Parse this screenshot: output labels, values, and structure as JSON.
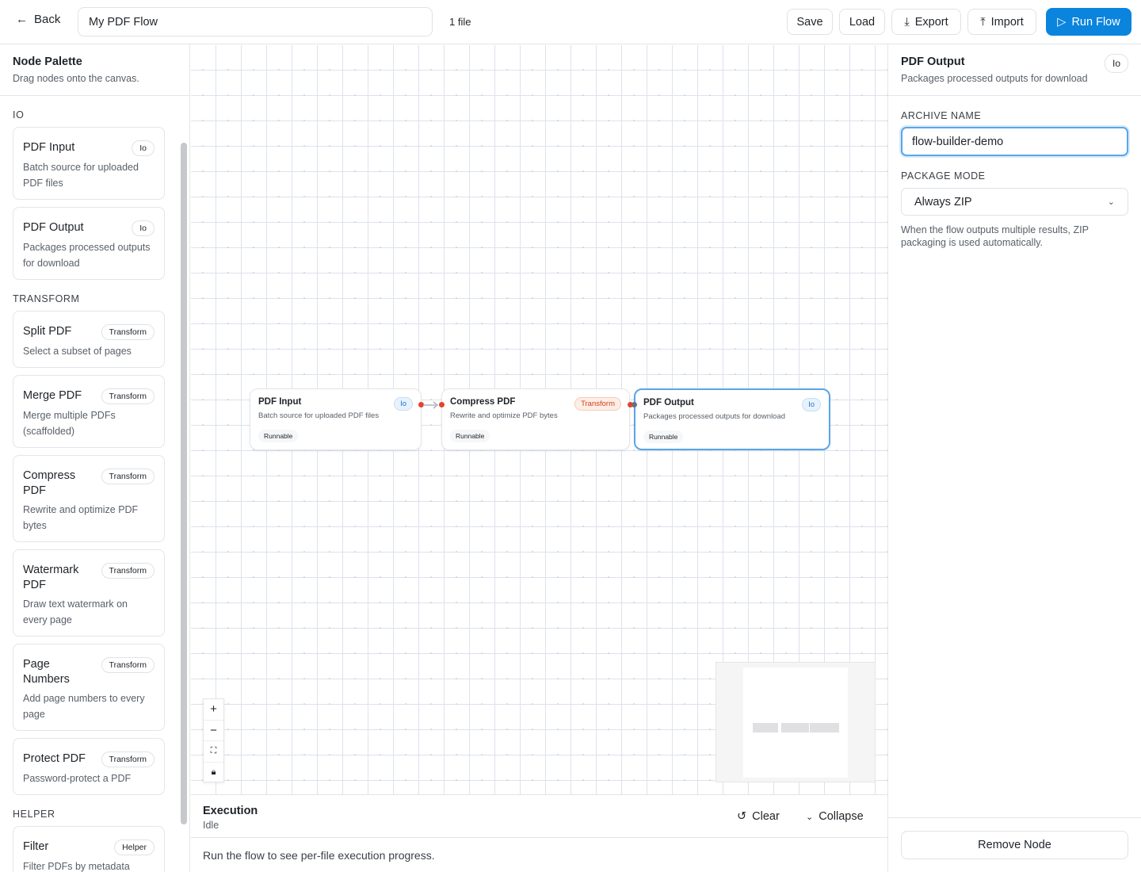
{
  "header": {
    "back": "Back",
    "flow_name": "My PDF Flow",
    "file_count": "1 file",
    "save": "Save",
    "load": "Load",
    "export": "Export",
    "import": "Import",
    "run": "Run Flow"
  },
  "palette": {
    "title": "Node Palette",
    "subtitle": "Drag nodes onto the canvas.",
    "sections": [
      {
        "label": "IO",
        "items": [
          {
            "title": "PDF Input",
            "badge": "Io",
            "desc": "Batch source for uploaded PDF files"
          },
          {
            "title": "PDF Output",
            "badge": "Io",
            "desc": "Packages processed outputs for download"
          }
        ]
      },
      {
        "label": "TRANSFORM",
        "items": [
          {
            "title": "Split PDF",
            "badge": "Transform",
            "desc": "Select a subset of pages"
          },
          {
            "title": "Merge PDF",
            "badge": "Transform",
            "desc": "Merge multiple PDFs (scaffolded)"
          },
          {
            "title": "Compress PDF",
            "badge": "Transform",
            "desc": "Rewrite and optimize PDF bytes"
          },
          {
            "title": "Watermark PDF",
            "badge": "Transform",
            "desc": "Draw text watermark on every page"
          },
          {
            "title": "Page Numbers",
            "badge": "Transform",
            "desc": "Add page numbers to every page"
          },
          {
            "title": "Protect PDF",
            "badge": "Transform",
            "desc": "Password-protect a PDF"
          }
        ]
      },
      {
        "label": "HELPER",
        "items": [
          {
            "title": "Filter",
            "badge": "Helper",
            "desc": "Filter PDFs by metadata (page count)"
          }
        ]
      }
    ]
  },
  "canvas": {
    "nodes": [
      {
        "title": "PDF Input",
        "badge": "Io",
        "desc": "Batch source for uploaded PDF files",
        "status": "Runnable"
      },
      {
        "title": "Compress PDF",
        "badge": "Transform",
        "desc": "Rewrite and optimize PDF bytes",
        "status": "Runnable"
      },
      {
        "title": "PDF Output",
        "badge": "Io",
        "desc": "Packages processed outputs for download",
        "status": "Runnable",
        "selected": true
      }
    ]
  },
  "execution": {
    "title": "Execution",
    "status": "Idle",
    "clear": "Clear",
    "collapse": "Collapse",
    "message": "Run the flow to see per-file execution progress."
  },
  "inspector": {
    "title": "PDF Output",
    "badge": "Io",
    "subtitle": "Packages processed outputs for download",
    "archive_label": "ARCHIVE NAME",
    "archive_value": "flow-builder-demo",
    "mode_label": "PACKAGE MODE",
    "mode_value": "Always ZIP",
    "help": "When the flow outputs multiple results, ZIP packaging is used automatically.",
    "remove": "Remove Node"
  },
  "colors": {
    "accent": "#0b84dd",
    "selected_border": "#5aa6e8",
    "handle": "#e5432d"
  }
}
